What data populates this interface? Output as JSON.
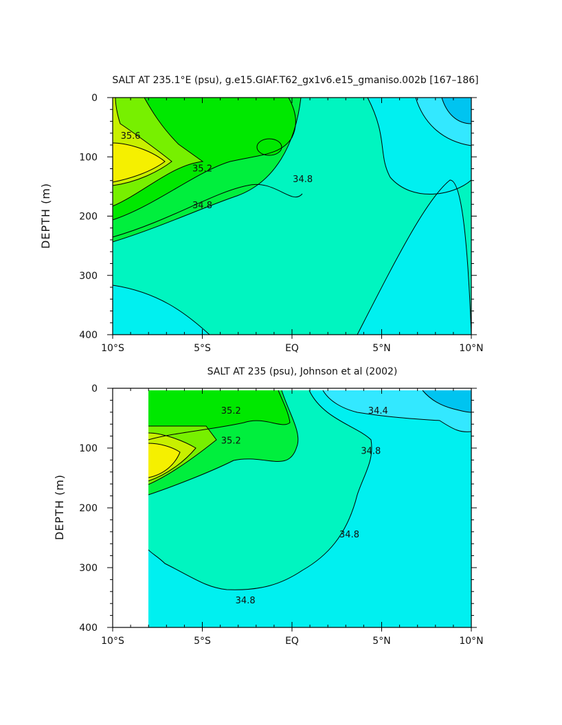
{
  "colors": {
    "c34_2": "#00c4f0",
    "c34_4": "#33e8ff",
    "c34_6": "#00f0f0",
    "c34_8": "#00f5c0",
    "c35_0": "#00ef3d",
    "c35_2": "#00e800",
    "c35_4": "#77f000",
    "c35_6": "#c8f000",
    "c35_8": "#f5f000",
    "axis": "#000000"
  },
  "chart_data": [
    {
      "type": "contour",
      "title": "SALT AT 235.1°E (psu), g.e15.GIAF.T62_gx1v6.e15_gmaniso.002b [167–186]",
      "ylabel": "DEPTH (m)",
      "xlim": [
        -10,
        10
      ],
      "ylim": [
        400,
        0
      ],
      "x_tick_labels": [
        "10°S",
        "5°S",
        "EQ",
        "5°N",
        "10°N"
      ],
      "x_ticks": [
        -10,
        -5,
        0,
        5,
        10
      ],
      "y_tick_labels": [
        "0",
        "100",
        "200",
        "300",
        "400"
      ],
      "y_ticks": [
        0,
        100,
        200,
        300,
        400
      ],
      "data_extent_x": [
        -10,
        10
      ],
      "contour_labels": [
        {
          "text": "35.6",
          "x": -9.0,
          "y": 65
        },
        {
          "text": "35.2",
          "x": -5.0,
          "y": 120
        },
        {
          "text": "34.8",
          "x": -5.0,
          "y": 182
        },
        {
          "text": "34.8",
          "x": 0.6,
          "y": 138
        }
      ]
    },
    {
      "type": "contour",
      "title": "SALT AT 235 (psu), Johnson et al (2002)",
      "ylabel": "DEPTH (m)",
      "xlim": [
        -10,
        10
      ],
      "ylim": [
        400,
        0
      ],
      "x_tick_labels": [
        "10°S",
        "5°S",
        "EQ",
        "5°N",
        "10°N"
      ],
      "x_ticks": [
        -10,
        -5,
        0,
        5,
        10
      ],
      "y_tick_labels": [
        "0",
        "100",
        "200",
        "300",
        "400"
      ],
      "y_ticks": [
        0,
        100,
        200,
        300,
        400
      ],
      "data_extent_x": [
        -8,
        10
      ],
      "contour_labels": [
        {
          "text": "35.2",
          "x": -3.4,
          "y": 38
        },
        {
          "text": "35.2",
          "x": -3.4,
          "y": 88
        },
        {
          "text": "34.4",
          "x": 4.8,
          "y": 38
        },
        {
          "text": "34.8",
          "x": 4.4,
          "y": 105
        },
        {
          "text": "34.8",
          "x": 3.2,
          "y": 245
        },
        {
          "text": "34.8",
          "x": -2.6,
          "y": 355
        }
      ]
    }
  ]
}
